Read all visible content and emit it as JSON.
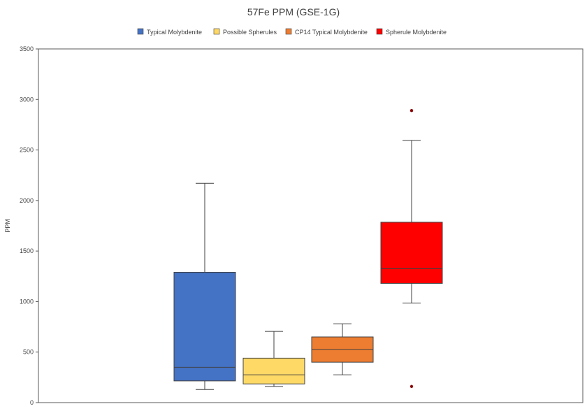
{
  "chart_data": {
    "type": "box",
    "title": "57Fe PPM (GSE-1G)",
    "xlabel": "",
    "ylabel": "PPM",
    "ylim": [
      0,
      3500
    ],
    "yticks": [
      0,
      500,
      1000,
      1500,
      2000,
      2500,
      3000,
      3500
    ],
    "grid": false,
    "legend_position": "top",
    "series": [
      {
        "name": "Typical Molybdenite",
        "color": "#4472C4",
        "whisker_low": 130,
        "q1": 215,
        "median": 350,
        "q3": 1290,
        "whisker_high": 2170,
        "outliers": []
      },
      {
        "name": "Possible Spherules",
        "color": "#FFD966",
        "whisker_low": 160,
        "q1": 185,
        "median": 275,
        "q3": 440,
        "whisker_high": 705,
        "outliers": []
      },
      {
        "name": "CP14 Typical Molybdenite",
        "color": "#ED7D31",
        "whisker_low": 275,
        "q1": 400,
        "median": 525,
        "q3": 650,
        "whisker_high": 780,
        "outliers": []
      },
      {
        "name": "Spherule Molybdenite",
        "color": "#FF0000",
        "whisker_low": 985,
        "q1": 1180,
        "median": 1325,
        "q3": 1785,
        "whisker_high": 2595,
        "outliers": [
          2890,
          160
        ]
      }
    ]
  }
}
